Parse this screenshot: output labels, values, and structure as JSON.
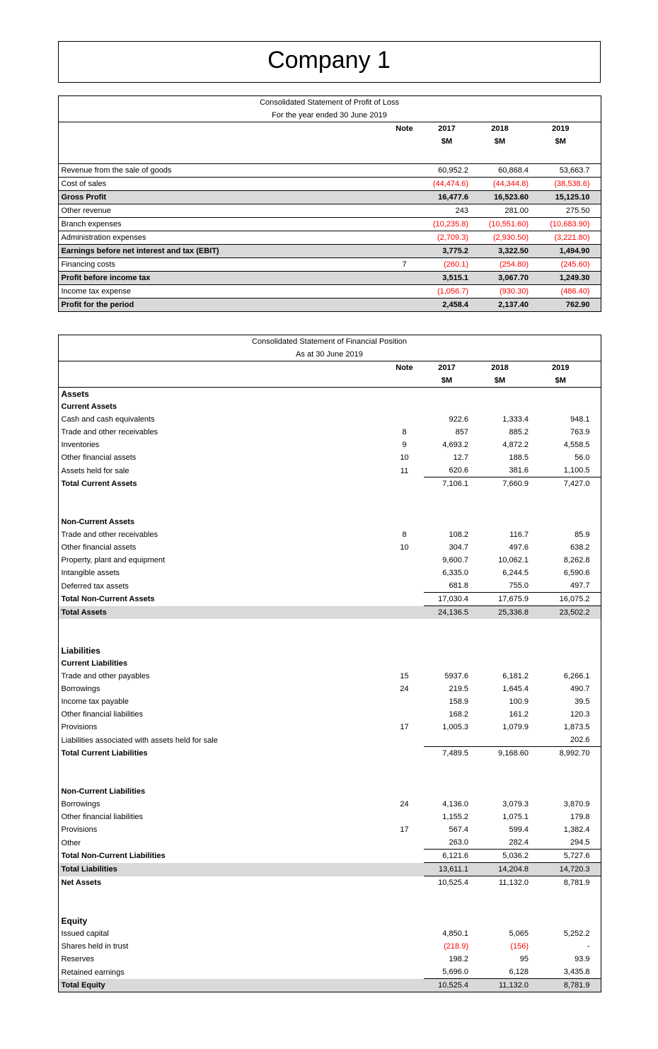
{
  "page_title": "Company 1",
  "colors": {
    "negative": "#ff0000",
    "total_shade": "#d9d9d9",
    "border": "#000000"
  },
  "tables": [
    {
      "id": "profit-loss",
      "title_lines": [
        "Consolidated Statement of Profit of Loss",
        "For the year ended 30 June 2019"
      ],
      "note_header": "Note",
      "year_headers": [
        "2017",
        "2018",
        "2019"
      ],
      "unit": "$M",
      "head_gap": true,
      "row_borders": true,
      "rows": [
        {
          "label": "Revenue from the sale of goods",
          "note": "",
          "v": [
            "60,952.2",
            "60,868.4",
            "53,663.7"
          ]
        },
        {
          "label": "Cost of sales",
          "note": "",
          "v": [
            "(44,474.6)",
            "(44,344.8)",
            "(38,538.6)"
          ],
          "red": true
        },
        {
          "label": "Gross Profit",
          "note": "",
          "v": [
            "16,477.6",
            "16,523.60",
            "15,125.10"
          ],
          "bold": true,
          "boldnum": true,
          "shade": true
        },
        {
          "label": "Other revenue",
          "note": "",
          "v": [
            "243",
            "281.00",
            "275.50"
          ]
        },
        {
          "label": "Branch expenses",
          "note": "",
          "v": [
            "(10,235.8)",
            "(10,551.60)",
            "(10,683.90)"
          ],
          "red": true
        },
        {
          "label": "Administration expenses",
          "note": "",
          "v": [
            "(2,709.3)",
            "(2,930.50)",
            "(3,221.80)"
          ],
          "red": true
        },
        {
          "label": "Earnings before net interest and tax (EBIT)",
          "note": "",
          "v": [
            "3,775.2",
            "3,322.50",
            "1,494.90"
          ],
          "bold": true,
          "boldnum": true,
          "shade": true
        },
        {
          "label": "Financing costs",
          "note": "7",
          "v": [
            "(260.1)",
            "(254.80)",
            "(245.60)"
          ],
          "red": true
        },
        {
          "label": "Profit before income tax",
          "note": "",
          "v": [
            "3,515.1",
            "3,067.70",
            "1,249.30"
          ],
          "bold": true,
          "boldnum": true,
          "shade": true
        },
        {
          "label": "Income tax expense",
          "note": "",
          "v": [
            "(1,056.7)",
            "(930.30)",
            "(486.40)"
          ],
          "red": true
        },
        {
          "label": "Profit for the period",
          "note": "",
          "v": [
            "2,458.4",
            "2,137.40",
            "762.90"
          ],
          "bold": true,
          "boldnum": true,
          "shade": true
        }
      ]
    },
    {
      "id": "financial-position",
      "title_lines": [
        "Consolidated Statement of Financial Position",
        "As at 30 June 2019"
      ],
      "note_header": "Note",
      "year_headers": [
        "2017",
        "2018",
        "2019"
      ],
      "unit": "$M",
      "head_gap": false,
      "row_borders": false,
      "rows": [
        {
          "label": "Assets",
          "section": "major"
        },
        {
          "label": "Current Assets",
          "section": "minor"
        },
        {
          "label": "Cash and cash equivalents",
          "note": "",
          "v": [
            "922.6",
            "1,333.4",
            "948.1"
          ]
        },
        {
          "label": "Trade and other receivables",
          "note": "8",
          "v": [
            "857",
            "885.2",
            "763.9"
          ]
        },
        {
          "label": "Inventories",
          "note": "9",
          "v": [
            "4,693.2",
            "4,872.2",
            "4,558.5"
          ]
        },
        {
          "label": "Other financial assets",
          "note": "10",
          "v": [
            "12.7",
            "188.5",
            "56.0"
          ]
        },
        {
          "label": "Assets held for sale",
          "note": "11",
          "v": [
            "620.6",
            "381.6",
            "1,100.5"
          ]
        },
        {
          "label": "Total Current Assets",
          "note": "",
          "v": [
            "7,106.1",
            "7,660.9",
            "7,427.0"
          ],
          "bold": true,
          "topline": true
        },
        {
          "spacer": true
        },
        {
          "spacer": true
        },
        {
          "label": "Non-Current Assets",
          "section": "minor"
        },
        {
          "label": "Trade and other receivables",
          "note": "8",
          "v": [
            "108.2",
            "116.7",
            "85.9"
          ]
        },
        {
          "label": "Other financial assets",
          "note": "10",
          "v": [
            "304.7",
            "497.6",
            "638.2"
          ]
        },
        {
          "label": "Property, plant and equipment",
          "note": "",
          "v": [
            "9,600.7",
            "10,062.1",
            "8,262.8"
          ]
        },
        {
          "label": "Intangible assets",
          "note": "",
          "v": [
            "6,335.0",
            "6,244.5",
            "6,590.6"
          ]
        },
        {
          "label": "Deferred tax assets",
          "note": "",
          "v": [
            "681.8",
            "755.0",
            "497.7"
          ]
        },
        {
          "label": "Total Non-Current Assets",
          "note": "",
          "v": [
            "17,030.4",
            "17,675.9",
            "16,075.2"
          ],
          "bold": true,
          "topline": true
        },
        {
          "label": "Total Assets",
          "note": "",
          "v": [
            "24,136.5",
            "25,336.8",
            "23,502.2"
          ],
          "bold": true,
          "shade": true,
          "topline": true
        },
        {
          "spacer": true
        },
        {
          "spacer": true
        },
        {
          "label": "Liabilities",
          "section": "major"
        },
        {
          "label": "Current Liabilities",
          "section": "minor"
        },
        {
          "label": "Trade and other payables",
          "note": "15",
          "v": [
            "5937.6",
            "6,181.2",
            "6,266.1"
          ]
        },
        {
          "label": "Borrowings",
          "note": "24",
          "v": [
            "219.5",
            "1,645.4",
            "490.7"
          ]
        },
        {
          "label": "Income tax payable",
          "note": "",
          "v": [
            "158.9",
            "100.9",
            "39.5"
          ]
        },
        {
          "label": "Other financial liabilities",
          "note": "",
          "v": [
            "168.2",
            "161.2",
            "120.3"
          ]
        },
        {
          "label": "Provisions",
          "note": "17",
          "v": [
            "1,005.3",
            "1,079.9",
            "1,873.5"
          ]
        },
        {
          "label": "Liabilities associated with assets held for sale",
          "note": "",
          "v": [
            "",
            "",
            "202.6"
          ]
        },
        {
          "label": "Total Current Liabilities",
          "note": "",
          "v": [
            "7,489.5",
            "9,168.60",
            "8,992.70"
          ],
          "bold": true,
          "topline": true
        },
        {
          "spacer": true
        },
        {
          "spacer": true
        },
        {
          "label": "Non-Current Liabilities",
          "section": "minor"
        },
        {
          "label": "Borrowings",
          "note": "24",
          "v": [
            "4,136.0",
            "3,079.3",
            "3,870.9"
          ]
        },
        {
          "label": "Other financial liabilities",
          "note": "",
          "v": [
            "1,155.2",
            "1,075.1",
            "179.8"
          ]
        },
        {
          "label": "Provisions",
          "note": "17",
          "v": [
            "567.4",
            "599.4",
            "1,382.4"
          ]
        },
        {
          "label": "Other",
          "note": "",
          "v": [
            "263.0",
            "282.4",
            "294.5"
          ]
        },
        {
          "label": "Total Non-Current Liabilities",
          "note": "",
          "v": [
            "6,121.6",
            "5,036.2",
            "5,727.6"
          ],
          "bold": true,
          "topline": true
        },
        {
          "label": "Total Liabilities",
          "note": "",
          "v": [
            "13,611.1",
            "14,204.8",
            "14,720.3"
          ],
          "bold": true,
          "shade": true,
          "topline": true
        },
        {
          "label": "Net Assets",
          "note": "",
          "v": [
            "10,525.4",
            "11,132.0",
            "8,781.9"
          ],
          "bold": true,
          "topline": true
        },
        {
          "spacer": true
        },
        {
          "spacer": true
        },
        {
          "label": "Equity",
          "section": "major"
        },
        {
          "label": "Issued capital",
          "note": "",
          "v": [
            "4,850.1",
            "5,065",
            "5,252.2"
          ]
        },
        {
          "label": "Shares held in trust",
          "note": "",
          "v": [
            "(218.9)",
            "(156)",
            "-"
          ],
          "red": true
        },
        {
          "label": "Reserves",
          "note": "",
          "v": [
            "198.2",
            "95",
            "93.9"
          ]
        },
        {
          "label": "Retained earnings",
          "note": "",
          "v": [
            "5,696.0",
            "6,128",
            "3,435.8"
          ]
        },
        {
          "label": "Total Equity",
          "note": "",
          "v": [
            "10,525.4",
            "11,132.0",
            "8,781.9"
          ],
          "bold": true,
          "shade": true,
          "topline": true
        }
      ]
    }
  ]
}
